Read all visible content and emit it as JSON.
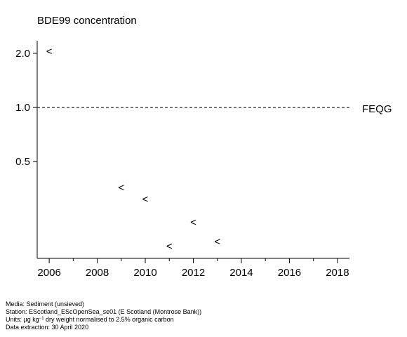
{
  "chart_data": {
    "type": "scatter",
    "title": "BDE99 concentration",
    "marker": "<",
    "scale": "log",
    "x": [
      2006,
      2009,
      2010,
      2011,
      2012,
      2013
    ],
    "y": [
      2.05,
      0.36,
      0.31,
      0.17,
      0.23,
      0.18
    ],
    "x_ticks": [
      2006,
      2008,
      2010,
      2012,
      2014,
      2016,
      2018
    ],
    "x_minor_ticks": [
      2007,
      2009,
      2011,
      2013,
      2015,
      2017
    ],
    "y_ticks": [
      {
        "value": 0.5,
        "label": "0.5"
      },
      {
        "value": 1.0,
        "label": "1.0"
      },
      {
        "value": 2.0,
        "label": "2.0"
      }
    ],
    "xlim": [
      2005.5,
      2018.5
    ],
    "ylim": [
      0.145,
      2.35
    ],
    "reference_line": {
      "value": 1.0,
      "label": "FEQG",
      "style": "dashed"
    },
    "grid": false
  },
  "footer": {
    "media": "Media: Sediment (unsieved)",
    "station": "Station: EScotland_EScOpenSea_se01 (E Scotland (Montrose Bank))",
    "units_prefix": "Units:  µg kg",
    "units_exponent": "−1",
    "units_suffix": " dry weight normalised to 2.5% organic carbon",
    "extraction": "Data extraction: 30 April 2020"
  },
  "colors": {
    "axis": "#000000",
    "marker": "#000000",
    "background": "#ffffff"
  }
}
